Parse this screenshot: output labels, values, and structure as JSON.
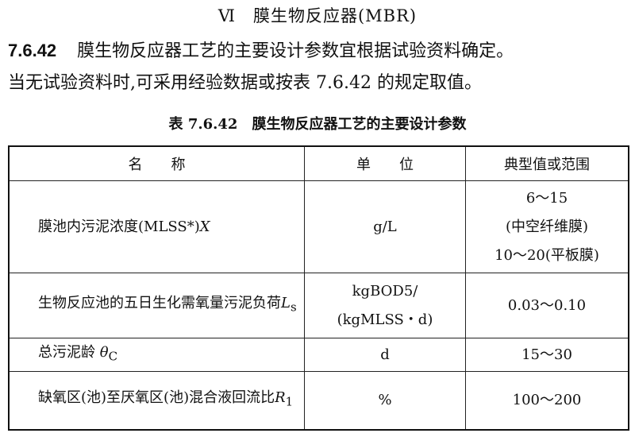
{
  "section": {
    "number": "Ⅵ",
    "title": "膜生物反应器(MBR)"
  },
  "clause": {
    "number": "7.6.42",
    "text_line1": "膜生物反应器工艺的主要设计参数宜根据试验资料确定。",
    "text_line2": "当无试验资料时,可采用经验数据或按表 7.6.42 的规定取值。"
  },
  "table": {
    "caption_number": "表 7.6.42",
    "caption_title": "膜生物反应器工艺的主要设计参数",
    "headers": [
      "名　　称",
      "单　　位",
      "典型值或范围"
    ],
    "rows": [
      {
        "name": "膜池内污泥浓度(MLSS*)",
        "symbol": "X",
        "symbol_sub": "",
        "unit_line1": "g/L",
        "unit_line2": "",
        "value_lines": [
          "6～15",
          "(中空纤维膜)",
          "10～20(平板膜)"
        ]
      },
      {
        "name": "生物反应池的五日生化需氧量污泥负荷",
        "symbol": "L",
        "symbol_sub": "s",
        "unit_line1": "kgBOD5/",
        "unit_line2": "(kgMLSS・d)",
        "value_lines": [
          "0.03～0.10"
        ]
      },
      {
        "name": "总污泥龄",
        "symbol": "θ",
        "symbol_sub": "C",
        "unit_line1": "d",
        "unit_line2": "",
        "value_lines": [
          "15～30"
        ]
      },
      {
        "name": "缺氧区(池)至厌氧区(池)混合液回流比",
        "symbol": "R",
        "symbol_sub": "1",
        "unit_line1": "%",
        "unit_line2": "",
        "value_lines": [
          "100～200"
        ]
      }
    ]
  }
}
